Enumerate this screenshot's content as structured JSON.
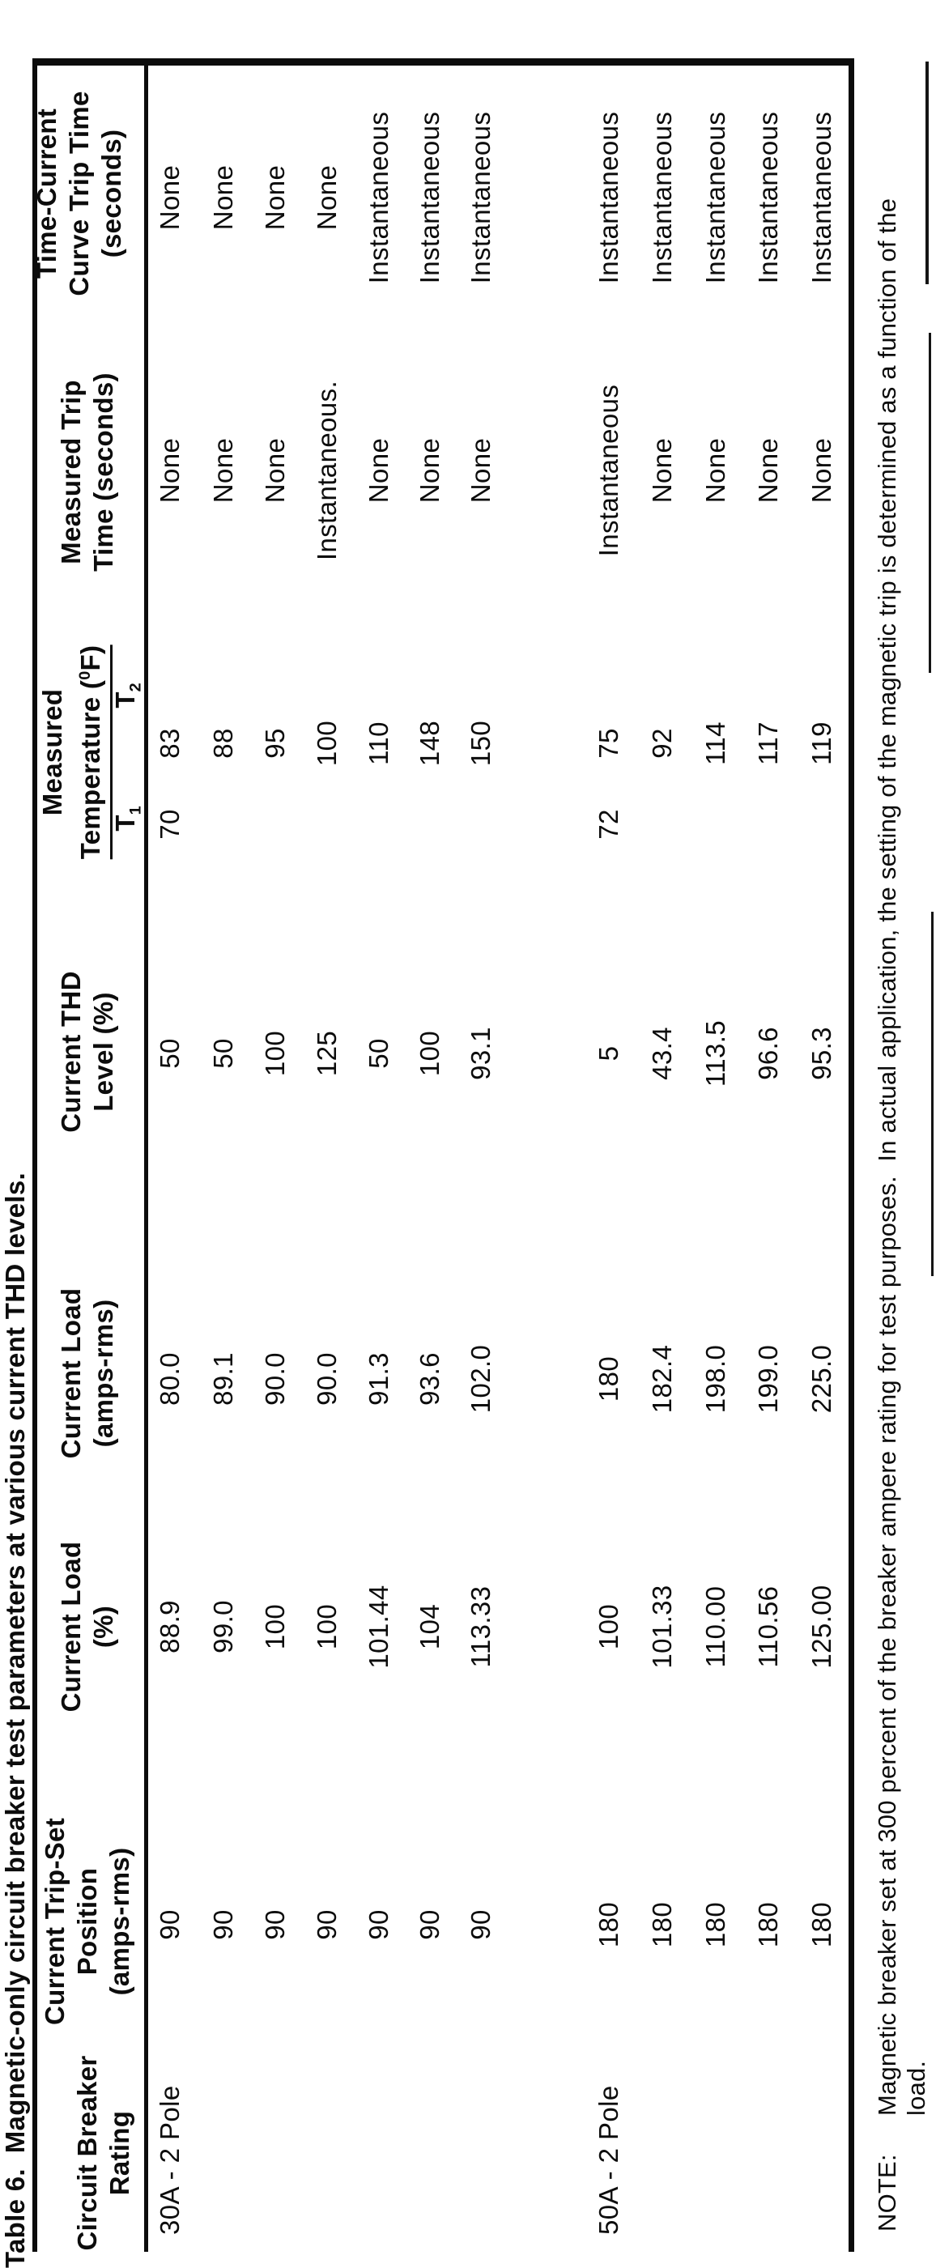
{
  "title": "Table 6.  Magnetic-only circuit breaker test parameters at various current THD levels.",
  "table": {
    "headers": {
      "rating": [
        "Circuit Breaker",
        "Rating"
      ],
      "trip_set": [
        "Current Trip-Set",
        "Position",
        "(amps-rms)"
      ],
      "load_pct": [
        "Current Load",
        "(%)"
      ],
      "load_amps": [
        "Current Load",
        "(amps-rms)"
      ],
      "thd": [
        "Current THD",
        "Level (%)"
      ],
      "temperature": {
        "line1": "Measured",
        "line2_pre": "Temperature (",
        "line2_sup": "0",
        "line2_post": "F)",
        "t1_base": "T",
        "t1_sub": "1",
        "t2_base": "T",
        "t2_sub": "2"
      },
      "trip_time": [
        "Measured Trip",
        "Time (seconds)"
      ],
      "curve_time": [
        "Time-Current",
        "Curve Trip Time",
        "(seconds)"
      ]
    },
    "rows": [
      {
        "rating": "30A - 2 Pole",
        "trip_set": "90",
        "load_pct": "88.9",
        "load_amps": "80.0",
        "thd": "50",
        "t1": "70",
        "t2": "83",
        "trip_time": "None",
        "curve_time": "None"
      },
      {
        "rating": "",
        "trip_set": "90",
        "load_pct": "99.0",
        "load_amps": "89.1",
        "thd": "50",
        "t1": "",
        "t2": "88",
        "trip_time": "None",
        "curve_time": "None"
      },
      {
        "rating": "",
        "trip_set": "90",
        "load_pct": "100",
        "load_amps": "90.0",
        "thd": "100",
        "t1": "",
        "t2": "95",
        "trip_time": "None",
        "curve_time": "None"
      },
      {
        "rating": "",
        "trip_set": "90",
        "load_pct": "100",
        "load_amps": "90.0",
        "thd": "125",
        "t1": "",
        "t2": "100",
        "trip_time": "Instantaneous.",
        "curve_time": "None"
      },
      {
        "rating": "",
        "trip_set": "90",
        "load_pct": "101.44",
        "load_amps": "91.3",
        "thd": "50",
        "t1": "",
        "t2": "110",
        "trip_time": "None",
        "curve_time": "Instantaneous"
      },
      {
        "rating": "",
        "trip_set": "90",
        "load_pct": "104",
        "load_amps": "93.6",
        "thd": "100",
        "t1": "",
        "t2": "148",
        "trip_time": "None",
        "curve_time": "Instantaneous"
      },
      {
        "rating": "",
        "trip_set": "90",
        "load_pct": "113.33",
        "load_amps": "102.0",
        "thd": "93.1",
        "t1": "",
        "t2": "150",
        "trip_time": "None",
        "curve_time": "Instantaneous"
      },
      {
        "rating": "50A - 2 Pole",
        "trip_set": "180",
        "load_pct": "100",
        "load_amps": "180",
        "thd": "5",
        "t1": "72",
        "t2": "75",
        "trip_time": "Instantaneous",
        "curve_time": "Instantaneous"
      },
      {
        "rating": "",
        "trip_set": "180",
        "load_pct": "101.33",
        "load_amps": "182.4",
        "thd": "43.4",
        "t1": "",
        "t2": "92",
        "trip_time": "None",
        "curve_time": "Instantaneous"
      },
      {
        "rating": "",
        "trip_set": "180",
        "load_pct": "110.00",
        "load_amps": "198.0",
        "thd": "113.5",
        "t1": "",
        "t2": "114",
        "trip_time": "None",
        "curve_time": "Instantaneous"
      },
      {
        "rating": "",
        "trip_set": "180",
        "load_pct": "110.56",
        "load_amps": "199.0",
        "thd": "96.6",
        "t1": "",
        "t2": "117",
        "trip_time": "None",
        "curve_time": "Instantaneous"
      },
      {
        "rating": "",
        "trip_set": "180",
        "load_pct": "125.00",
        "load_amps": "225.0",
        "thd": "95.3",
        "t1": "",
        "t2": "119",
        "trip_time": "None",
        "curve_time": "Instantaneous"
      }
    ]
  },
  "note": {
    "label": "NOTE:",
    "body": "Magnetic breaker set at 300 percent of the breaker ampere rating for test purposes.  In actual application, the setting of the magnetic trip is determined as a function of the",
    "body_line2": "load."
  }
}
